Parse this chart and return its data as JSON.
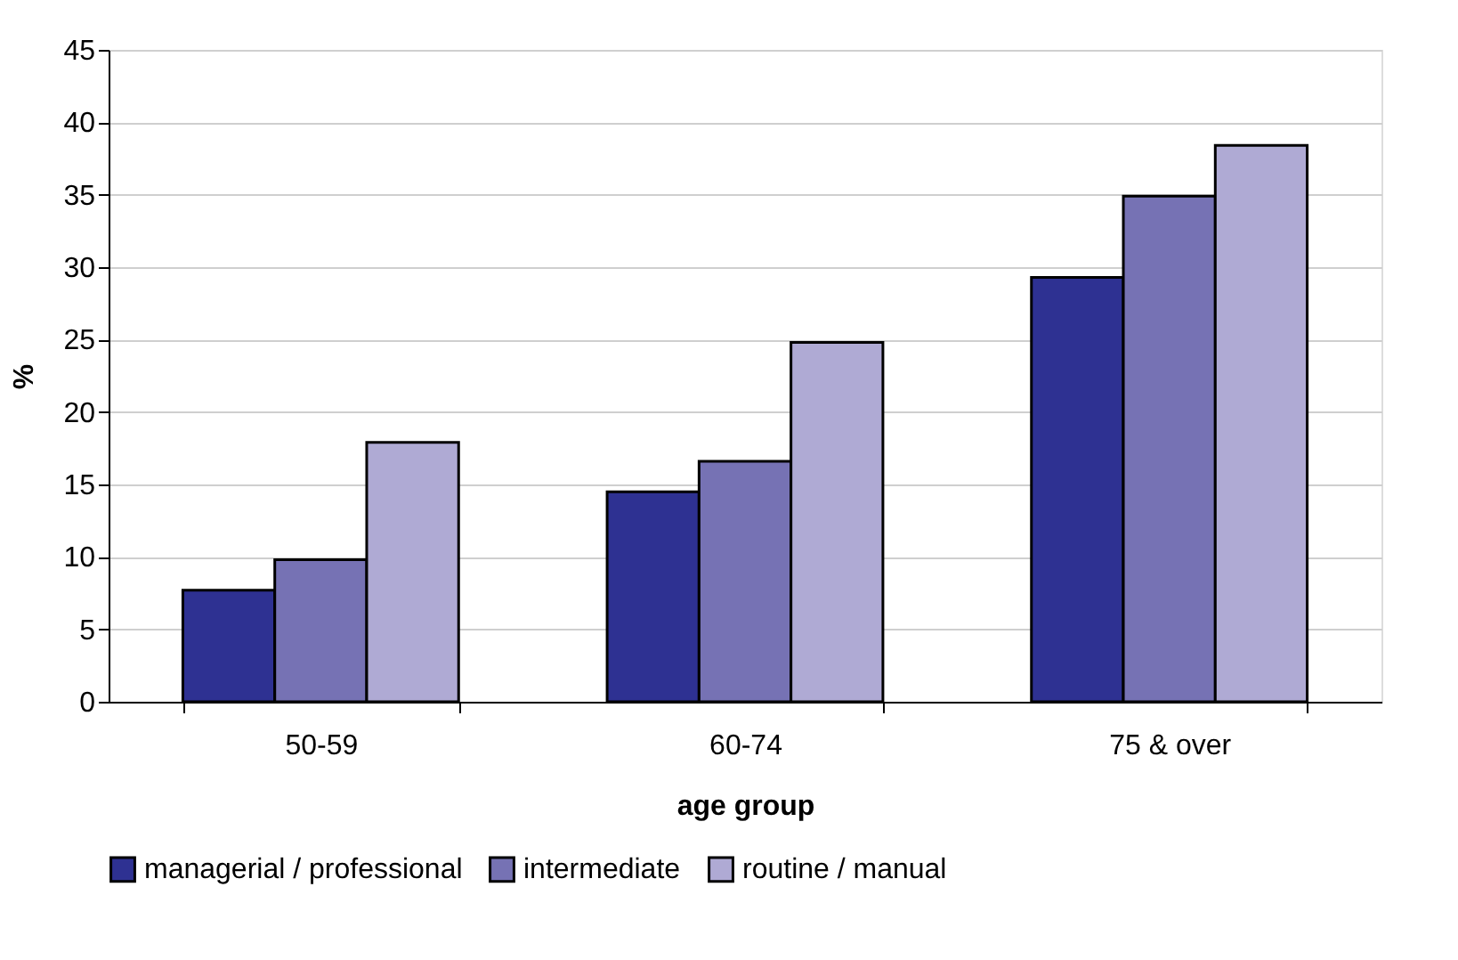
{
  "chart_data": {
    "type": "bar",
    "xlabel": "age group",
    "ylabel": "%",
    "categories": [
      "50-59",
      "60-74",
      "75 & over"
    ],
    "series": [
      {
        "name": "managerial / professional",
        "color": "#2e3192",
        "values": [
          7.7,
          14.5,
          29.3
        ]
      },
      {
        "name": "intermediate",
        "color": "#7672b4",
        "values": [
          9.8,
          16.6,
          34.9
        ]
      },
      {
        "name": "routine / manual",
        "color": "#afaad4",
        "values": [
          17.9,
          24.8,
          38.4
        ]
      }
    ],
    "ylim": [
      0,
      45
    ],
    "yticks": [
      0,
      5,
      10,
      15,
      20,
      25,
      30,
      35,
      40,
      45
    ],
    "grid": "y",
    "legend": "bottom"
  }
}
